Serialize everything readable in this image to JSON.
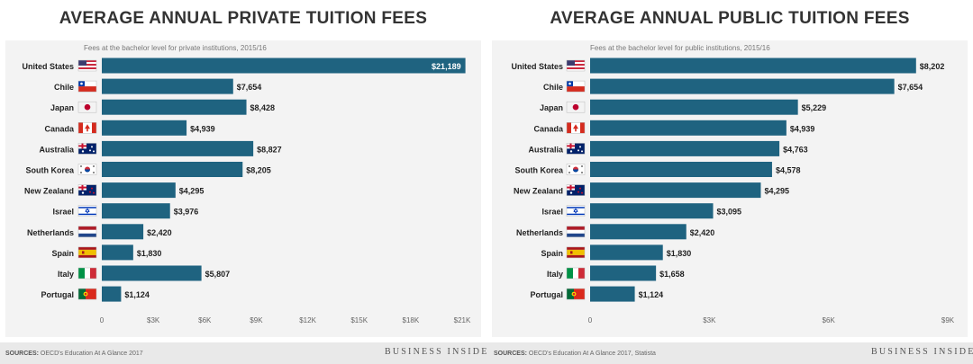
{
  "chart_data": [
    {
      "type": "bar",
      "orientation": "horizontal",
      "title": "AVERAGE ANNUAL PRIVATE TUITION FEES",
      "subtitle": "Fees at the bachelor level for private institutions, 2015/16",
      "categories": [
        "United States",
        "Chile",
        "Japan",
        "Canada",
        "Australia",
        "South Korea",
        "New Zealand",
        "Israel",
        "Netherlands",
        "Spain",
        "Italy",
        "Portugal"
      ],
      "flags": [
        "us-flag-icon",
        "chile-flag-icon",
        "japan-flag-icon",
        "canada-flag-icon",
        "australia-flag-icon",
        "south-korea-flag-icon",
        "new-zealand-flag-icon",
        "israel-flag-icon",
        "netherlands-flag-icon",
        "spain-flag-icon",
        "italy-flag-icon",
        "portugal-flag-icon"
      ],
      "values": [
        21189,
        7654,
        8428,
        4939,
        8827,
        8205,
        4295,
        3976,
        2420,
        1830,
        5807,
        1124
      ],
      "value_labels": [
        "$21,189",
        "$7,654",
        "$8,428",
        "$4,939",
        "$8,827",
        "$8,205",
        "$4,295",
        "$3,976",
        "$2,420",
        "$1,830",
        "$5,807",
        "$1,124"
      ],
      "xlim": [
        0,
        21000
      ],
      "xticks": [
        0,
        3000,
        6000,
        9000,
        12000,
        15000,
        18000,
        21000
      ],
      "xtick_labels": [
        "0",
        "$3K",
        "$6K",
        "$9K",
        "$12K",
        "$15K",
        "$18K",
        "$21K"
      ],
      "xlabel": "",
      "ylabel": "",
      "bar_color": "#1f6380",
      "source_label": "SOURCES:",
      "source_text": "OECD's Education At A Glance 2017",
      "brand": "BUSINESS INSIDER"
    },
    {
      "type": "bar",
      "orientation": "horizontal",
      "title": "AVERAGE ANNUAL PUBLIC TUITION FEES",
      "subtitle": "Fees at the bachelor level for public institutions, 2015/16",
      "categories": [
        "United States",
        "Chile",
        "Japan",
        "Canada",
        "Australia",
        "South Korea",
        "New Zealand",
        "Israel",
        "Netherlands",
        "Spain",
        "Italy",
        "Portugal"
      ],
      "flags": [
        "us-flag-icon",
        "chile-flag-icon",
        "japan-flag-icon",
        "canada-flag-icon",
        "australia-flag-icon",
        "south-korea-flag-icon",
        "new-zealand-flag-icon",
        "israel-flag-icon",
        "netherlands-flag-icon",
        "spain-flag-icon",
        "italy-flag-icon",
        "portugal-flag-icon"
      ],
      "values": [
        8202,
        7654,
        5229,
        4939,
        4763,
        4578,
        4295,
        3095,
        2420,
        1830,
        1658,
        1124
      ],
      "value_labels": [
        "$8,202",
        "$7,654",
        "$5,229",
        "$4,939",
        "$4,763",
        "$4,578",
        "$4,295",
        "$3,095",
        "$2,420",
        "$1,830",
        "$1,658",
        "$1,124"
      ],
      "xlim": [
        0,
        9000
      ],
      "xticks": [
        0,
        3000,
        6000,
        9000
      ],
      "xtick_labels": [
        "0",
        "$3K",
        "$6K",
        "$9K"
      ],
      "xlabel": "",
      "ylabel": "",
      "bar_color": "#1f6380",
      "source_label": "SOURCES:",
      "source_text": "OECD's Education At A Glance 2017, Statista",
      "brand": "BUSINESS INSIDER"
    }
  ]
}
